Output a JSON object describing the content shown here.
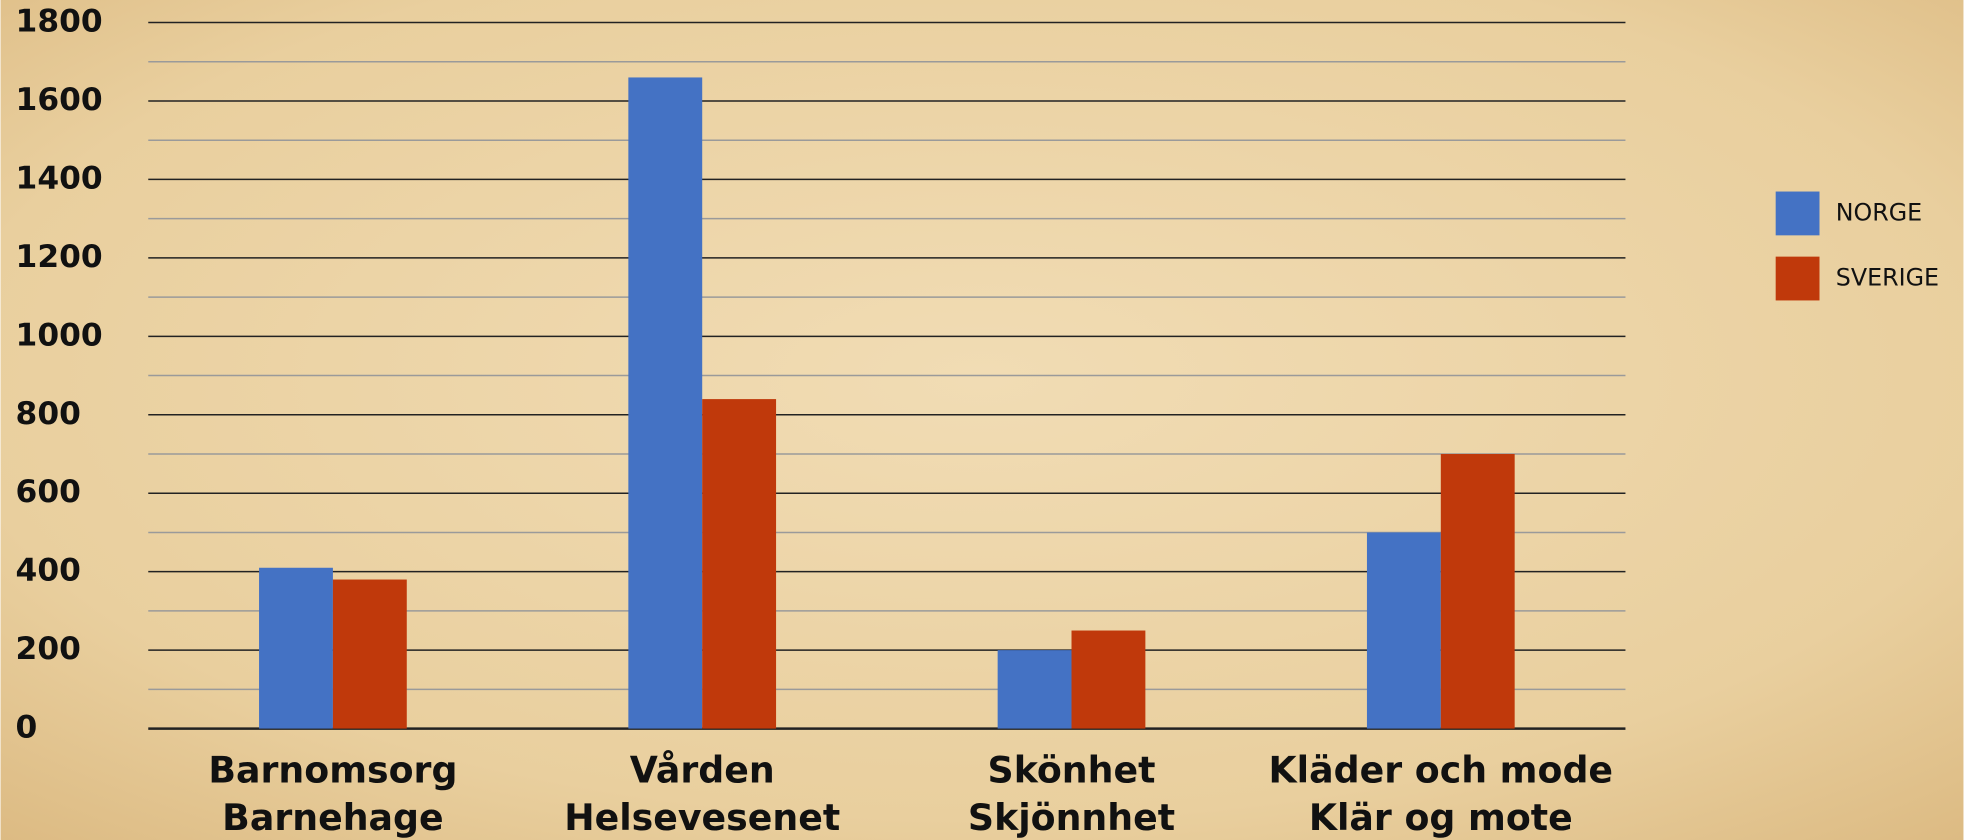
{
  "chart_data": {
    "type": "bar",
    "categories": [
      [
        "Barnomsorg",
        "Barnehage"
      ],
      [
        "Vården",
        "Helsevesenet"
      ],
      [
        "Skönhet",
        "Skjönnhet"
      ],
      [
        "Kläder och mode",
        "Klär og mote"
      ]
    ],
    "series": [
      {
        "name": "NORGE",
        "color": "#4472c4",
        "values": [
          410,
          1660,
          200,
          500
        ]
      },
      {
        "name": "SVERIGE",
        "color": "#c0390b",
        "values": [
          380,
          840,
          250,
          700
        ]
      }
    ],
    "ylim": [
      0,
      1800
    ],
    "yticks": [
      0,
      200,
      400,
      600,
      800,
      1000,
      1200,
      1400,
      1600,
      1800
    ],
    "minor_yticks": [
      100,
      300,
      500,
      700,
      900,
      1100,
      1300,
      1500,
      1700
    ],
    "grid": true,
    "legend": "right"
  }
}
